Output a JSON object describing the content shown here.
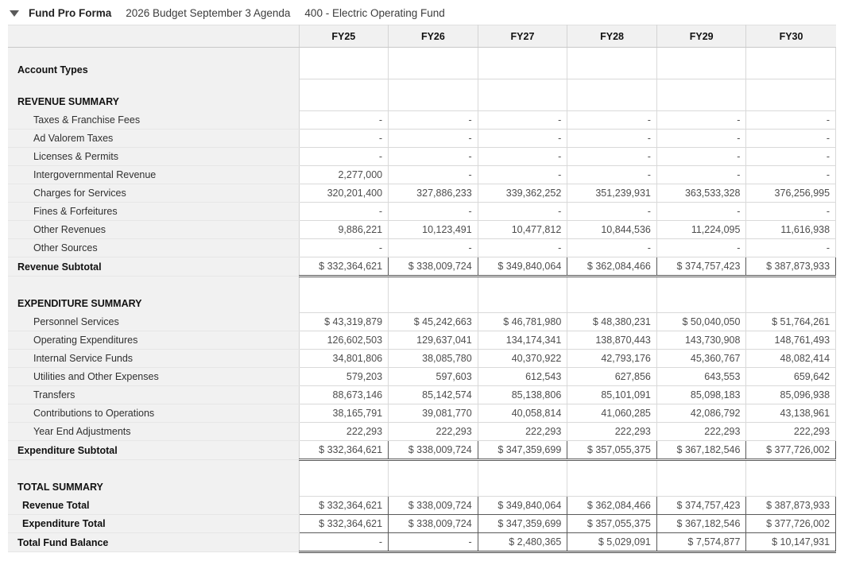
{
  "header": {
    "collapse_icon": "triangle-down",
    "title": "Fund Pro Forma",
    "budget_name": "2026 Budget September 3 Agenda",
    "fund_name": "400 - Electric Operating Fund"
  },
  "table": {
    "columns": [
      "FY25",
      "FY26",
      "FY27",
      "FY28",
      "FY29",
      "FY30"
    ],
    "rows": [
      {
        "label": "Account Types",
        "type": "section",
        "values": [
          "",
          "",
          "",
          "",
          "",
          ""
        ]
      },
      {
        "label": "REVENUE SUMMARY",
        "type": "section",
        "values": [
          "",
          "",
          "",
          "",
          "",
          ""
        ]
      },
      {
        "label": "Taxes & Franchise Fees",
        "type": "detail",
        "values": [
          "-",
          "-",
          "-",
          "-",
          "-",
          "-"
        ]
      },
      {
        "label": "Ad Valorem Taxes",
        "type": "detail",
        "values": [
          "-",
          "-",
          "-",
          "-",
          "-",
          "-"
        ]
      },
      {
        "label": "Licenses & Permits",
        "type": "detail",
        "values": [
          "-",
          "-",
          "-",
          "-",
          "-",
          "-"
        ]
      },
      {
        "label": "Intergovernmental Revenue",
        "type": "detail",
        "values": [
          "2,277,000",
          "-",
          "-",
          "-",
          "-",
          "-"
        ]
      },
      {
        "label": "Charges for Services",
        "type": "detail",
        "values": [
          "320,201,400",
          "327,886,233",
          "339,362,252",
          "351,239,931",
          "363,533,328",
          "376,256,995"
        ]
      },
      {
        "label": "Fines & Forfeitures",
        "type": "detail",
        "values": [
          "-",
          "-",
          "-",
          "-",
          "-",
          "-"
        ]
      },
      {
        "label": "Other Revenues",
        "type": "detail",
        "values": [
          "9,886,221",
          "10,123,491",
          "10,477,812",
          "10,844,536",
          "11,224,095",
          "11,616,938"
        ]
      },
      {
        "label": "Other Sources",
        "type": "detail",
        "values": [
          "-",
          "-",
          "-",
          "-",
          "-",
          "-"
        ]
      },
      {
        "label": "Revenue Subtotal",
        "type": "subtotal",
        "values": [
          "$ 332,364,621",
          "$ 338,009,724",
          "$ 349,840,064",
          "$ 362,084,466",
          "$ 374,757,423",
          "$ 387,873,933"
        ]
      },
      {
        "label": "EXPENDITURE SUMMARY",
        "type": "section section-tall",
        "values": [
          "",
          "",
          "",
          "",
          "",
          ""
        ]
      },
      {
        "label": "Personnel Services",
        "type": "detail",
        "values": [
          "$ 43,319,879",
          "$ 45,242,663",
          "$ 46,781,980",
          "$ 48,380,231",
          "$ 50,040,050",
          "$ 51,764,261"
        ]
      },
      {
        "label": "Operating Expenditures",
        "type": "detail",
        "values": [
          "126,602,503",
          "129,637,041",
          "134,174,341",
          "138,870,443",
          "143,730,908",
          "148,761,493"
        ]
      },
      {
        "label": "Internal Service Funds",
        "type": "detail",
        "values": [
          "34,801,806",
          "38,085,780",
          "40,370,922",
          "42,793,176",
          "45,360,767",
          "48,082,414"
        ]
      },
      {
        "label": "Utilities and Other Expenses",
        "type": "detail",
        "values": [
          "579,203",
          "597,603",
          "612,543",
          "627,856",
          "643,553",
          "659,642"
        ]
      },
      {
        "label": "Transfers",
        "type": "detail",
        "values": [
          "88,673,146",
          "85,142,574",
          "85,138,806",
          "85,101,091",
          "85,098,183",
          "85,096,938"
        ]
      },
      {
        "label": "Contributions to Operations",
        "type": "detail",
        "values": [
          "38,165,791",
          "39,081,770",
          "40,058,814",
          "41,060,285",
          "42,086,792",
          "43,138,961"
        ]
      },
      {
        "label": "Year End Adjustments",
        "type": "detail",
        "values": [
          "222,293",
          "222,293",
          "222,293",
          "222,293",
          "222,293",
          "222,293"
        ]
      },
      {
        "label": "Expenditure Subtotal",
        "type": "subtotal",
        "values": [
          "$ 332,364,621",
          "$ 338,009,724",
          "$ 347,359,699",
          "$ 357,055,375",
          "$ 367,182,546",
          "$ 377,726,002"
        ]
      },
      {
        "label": "TOTAL SUMMARY",
        "type": "section section-tall",
        "values": [
          "",
          "",
          "",
          "",
          "",
          ""
        ]
      },
      {
        "label": "Revenue Total",
        "type": "total",
        "values": [
          "$ 332,364,621",
          "$ 338,009,724",
          "$ 349,840,064",
          "$ 362,084,466",
          "$ 374,757,423",
          "$ 387,873,933"
        ]
      },
      {
        "label": "Expenditure Total",
        "type": "total",
        "values": [
          "$ 332,364,621",
          "$ 338,009,724",
          "$ 347,359,699",
          "$ 357,055,375",
          "$ 367,182,546",
          "$ 377,726,002"
        ]
      },
      {
        "label": "Total Fund Balance",
        "type": "grandtotal",
        "values": [
          "-",
          "-",
          "$ 2,480,365",
          "$ 5,029,091",
          "$ 7,574,877",
          "$ 10,147,931"
        ]
      }
    ]
  }
}
